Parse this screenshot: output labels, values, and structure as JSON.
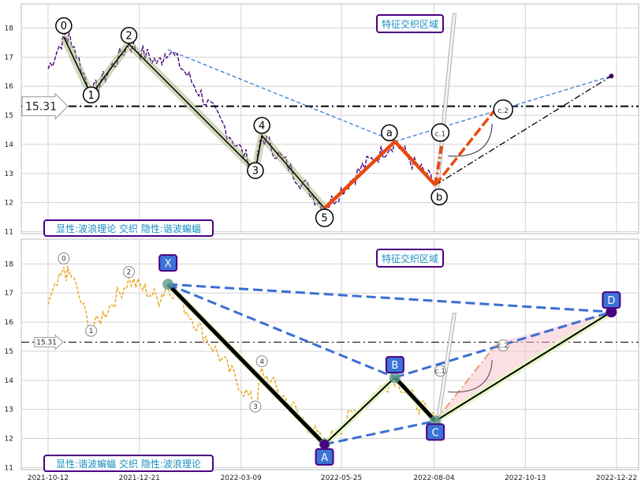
{
  "chart_data": [
    {
      "type": "line",
      "panel": "top",
      "ylim": [
        11,
        18.8
      ],
      "yticks": [
        11,
        12,
        13,
        14,
        15,
        16,
        17,
        18
      ],
      "grid": true,
      "corner_label": "显性:波浪理论 交织 隐性:谐波蝙蝠",
      "region_label": "特征交织区域",
      "level_value": 15.31,
      "level_label": "15.31",
      "wave_points": [
        {
          "label": "0",
          "date": "2021-10-24",
          "value": 17.7
        },
        {
          "label": "1",
          "date": "2021-11-14",
          "value": 15.7
        },
        {
          "label": "2",
          "date": "2021-12-13",
          "value": 17.45
        },
        {
          "label": "3",
          "date": "2022-03-20",
          "value": 13.1
        },
        {
          "label": "4",
          "date": "2022-03-25",
          "value": 14.3
        },
        {
          "label": "5",
          "date": "2022-05-12",
          "value": 11.8
        }
      ],
      "abc_points": [
        {
          "label": "a",
          "date": "2022-07-05",
          "value": 14.1
        },
        {
          "label": "b",
          "date": "2022-08-05",
          "value": 12.6
        },
        {
          "label": "c.1",
          "date": "2022-08-10",
          "value": 14.0
        },
        {
          "label": "c.2",
          "date": "2022-09-20",
          "value": 15.2
        }
      ]
    },
    {
      "type": "line",
      "panel": "bottom",
      "ylim": [
        11,
        18.8
      ],
      "yticks": [
        11,
        12,
        13,
        14,
        15,
        16,
        17,
        18
      ],
      "grid": true,
      "corner_label": "显性:谐波蝙蝠 交织 隐性:波浪理论",
      "region_label": "特征交织区域",
      "level_value": 15.31,
      "level_label": "15.31",
      "xticks": [
        "2021-10-12",
        "2021-12-21",
        "2022-03-09",
        "2022-05-25",
        "2022-08-04",
        "2022-10-13",
        "2022-12-22"
      ],
      "harmonic_points": [
        {
          "label": "X",
          "date": "2022-01-12",
          "value": 17.3
        },
        {
          "label": "A",
          "date": "2022-05-12",
          "value": 11.8
        },
        {
          "label": "B",
          "date": "2022-07-05",
          "value": 14.1
        },
        {
          "label": "C",
          "date": "2022-08-05",
          "value": 12.6
        },
        {
          "label": "D",
          "date": "2022-12-18",
          "value": 16.35
        }
      ],
      "wave_labels": [
        "0",
        "1",
        "2",
        "3",
        "4"
      ],
      "abc_labels": [
        "c.1",
        "c.2"
      ]
    }
  ]
}
